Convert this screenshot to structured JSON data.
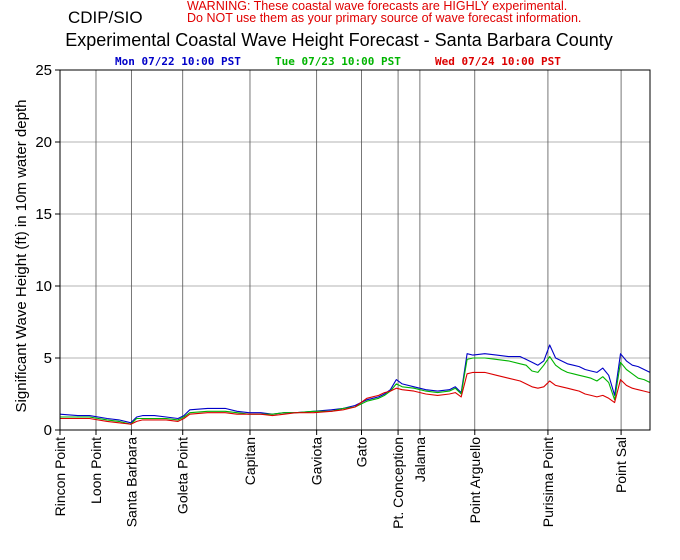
{
  "header": {
    "org": "CDIP/SIO",
    "warning_line1": "WARNING:  These coastal wave forecasts are HIGHLY experimental.",
    "warning_line2": "Do NOT use them as your primary source of wave forecast information."
  },
  "colors": {
    "series": [
      "#0000c8",
      "#00b400",
      "#dc0000"
    ],
    "warning": "#e00000",
    "grid": "#9a9a9a"
  },
  "chart_data": {
    "type": "line",
    "title": "Experimental Coastal Wave Height Forecast - Santa Barbara County",
    "ylabel": "Significant Wave Height (ft) in 10m water depth",
    "xlabel": "",
    "ylim": [
      0,
      25
    ],
    "yticks": [
      0,
      5,
      10,
      15,
      20,
      25
    ],
    "ytick_labels": [
      "0",
      "5",
      "10",
      "15",
      "20",
      "25"
    ],
    "grid": true,
    "x_index_range": [
      0,
      100
    ],
    "locations": [
      {
        "name": "Rincon Point",
        "x": 0
      },
      {
        "name": "Loon Point",
        "x": 6.1
      },
      {
        "name": "Santa Barbara",
        "x": 12.1
      },
      {
        "name": "Goleta Point",
        "x": 20.8
      },
      {
        "name": "Capitan",
        "x": 32.2
      },
      {
        "name": "Gaviota",
        "x": 43.5
      },
      {
        "name": "Gato",
        "x": 51.1
      },
      {
        "name": "Pt. Conception",
        "x": 57.3
      },
      {
        "name": "Jalama",
        "x": 61.0
      },
      {
        "name": "Point Arguello",
        "x": 70.3
      },
      {
        "name": "Purisima Point",
        "x": 82.7
      },
      {
        "name": "Point Sal",
        "x": 95.1
      }
    ],
    "series": [
      {
        "name": "Mon 07/22 10:00 PST",
        "x": [
          0,
          3,
          5,
          8,
          10,
          12,
          13,
          14,
          16,
          18,
          20,
          21,
          22,
          25,
          28,
          30,
          32,
          34,
          36,
          38,
          40,
          43,
          46,
          48,
          50,
          52,
          54,
          55,
          56,
          57,
          58,
          60,
          62,
          64,
          66,
          67,
          68,
          69,
          70,
          72,
          74,
          76,
          78,
          79,
          80,
          81,
          82,
          83,
          84,
          85,
          86,
          87,
          88,
          89,
          90,
          91,
          92,
          93,
          94,
          95,
          96,
          97,
          98,
          99,
          100
        ],
        "values": [
          1.1,
          1.0,
          1.0,
          0.8,
          0.7,
          0.5,
          0.9,
          1.0,
          1.0,
          0.9,
          0.8,
          1.0,
          1.4,
          1.5,
          1.5,
          1.3,
          1.2,
          1.2,
          1.1,
          1.2,
          1.2,
          1.3,
          1.4,
          1.5,
          1.7,
          2.1,
          2.3,
          2.5,
          2.8,
          3.5,
          3.2,
          3.0,
          2.8,
          2.7,
          2.8,
          3.0,
          2.6,
          5.3,
          5.2,
          5.3,
          5.2,
          5.1,
          5.1,
          4.9,
          4.7,
          4.5,
          4.8,
          5.9,
          5.0,
          4.8,
          4.6,
          4.5,
          4.4,
          4.2,
          4.1,
          4.0,
          4.3,
          3.8,
          2.4,
          5.3,
          4.8,
          4.5,
          4.4,
          4.2,
          4.0
        ]
      },
      {
        "name": "Tue 07/23 10:00 PST",
        "x": [
          0,
          3,
          5,
          8,
          10,
          12,
          13,
          14,
          16,
          18,
          20,
          21,
          22,
          25,
          28,
          30,
          32,
          34,
          36,
          38,
          40,
          43,
          46,
          48,
          50,
          52,
          54,
          55,
          56,
          57,
          58,
          60,
          62,
          64,
          66,
          67,
          68,
          69,
          70,
          72,
          74,
          76,
          78,
          79,
          80,
          81,
          82,
          83,
          84,
          85,
          86,
          87,
          88,
          89,
          90,
          91,
          92,
          93,
          94,
          95,
          96,
          97,
          98,
          99,
          100
        ],
        "values": [
          0.9,
          0.9,
          0.9,
          0.7,
          0.6,
          0.4,
          0.8,
          0.8,
          0.8,
          0.8,
          0.7,
          0.9,
          1.2,
          1.3,
          1.3,
          1.2,
          1.1,
          1.1,
          1.1,
          1.2,
          1.2,
          1.3,
          1.3,
          1.5,
          1.6,
          2.0,
          2.2,
          2.4,
          2.7,
          3.2,
          3.0,
          2.9,
          2.7,
          2.6,
          2.7,
          2.9,
          2.5,
          4.9,
          5.0,
          5.0,
          4.9,
          4.8,
          4.6,
          4.5,
          4.1,
          4.0,
          4.5,
          5.1,
          4.5,
          4.2,
          4.0,
          3.9,
          3.8,
          3.7,
          3.6,
          3.4,
          3.7,
          3.3,
          2.1,
          4.7,
          4.2,
          3.9,
          3.6,
          3.5,
          3.3
        ]
      },
      {
        "name": "Wed 07/24 10:00 PST",
        "x": [
          0,
          3,
          5,
          8,
          10,
          12,
          13,
          14,
          16,
          18,
          20,
          21,
          22,
          25,
          28,
          30,
          32,
          34,
          36,
          38,
          40,
          43,
          46,
          48,
          50,
          52,
          54,
          55,
          56,
          57,
          58,
          60,
          62,
          64,
          66,
          67,
          68,
          69,
          70,
          72,
          74,
          76,
          78,
          79,
          80,
          81,
          82,
          83,
          84,
          85,
          86,
          87,
          88,
          89,
          90,
          91,
          92,
          93,
          94,
          95,
          96,
          97,
          98,
          99,
          100
        ],
        "values": [
          0.8,
          0.8,
          0.8,
          0.6,
          0.5,
          0.4,
          0.6,
          0.7,
          0.7,
          0.7,
          0.6,
          0.8,
          1.1,
          1.2,
          1.2,
          1.1,
          1.1,
          1.1,
          1.0,
          1.1,
          1.2,
          1.2,
          1.3,
          1.4,
          1.6,
          2.2,
          2.4,
          2.6,
          2.7,
          2.9,
          2.8,
          2.7,
          2.5,
          2.4,
          2.5,
          2.6,
          2.3,
          3.9,
          4.0,
          4.0,
          3.8,
          3.6,
          3.4,
          3.2,
          3.0,
          2.9,
          3.0,
          3.4,
          3.1,
          3.0,
          2.9,
          2.8,
          2.7,
          2.5,
          2.4,
          2.3,
          2.4,
          2.2,
          1.9,
          3.5,
          3.1,
          2.9,
          2.8,
          2.7,
          2.6
        ]
      }
    ]
  }
}
